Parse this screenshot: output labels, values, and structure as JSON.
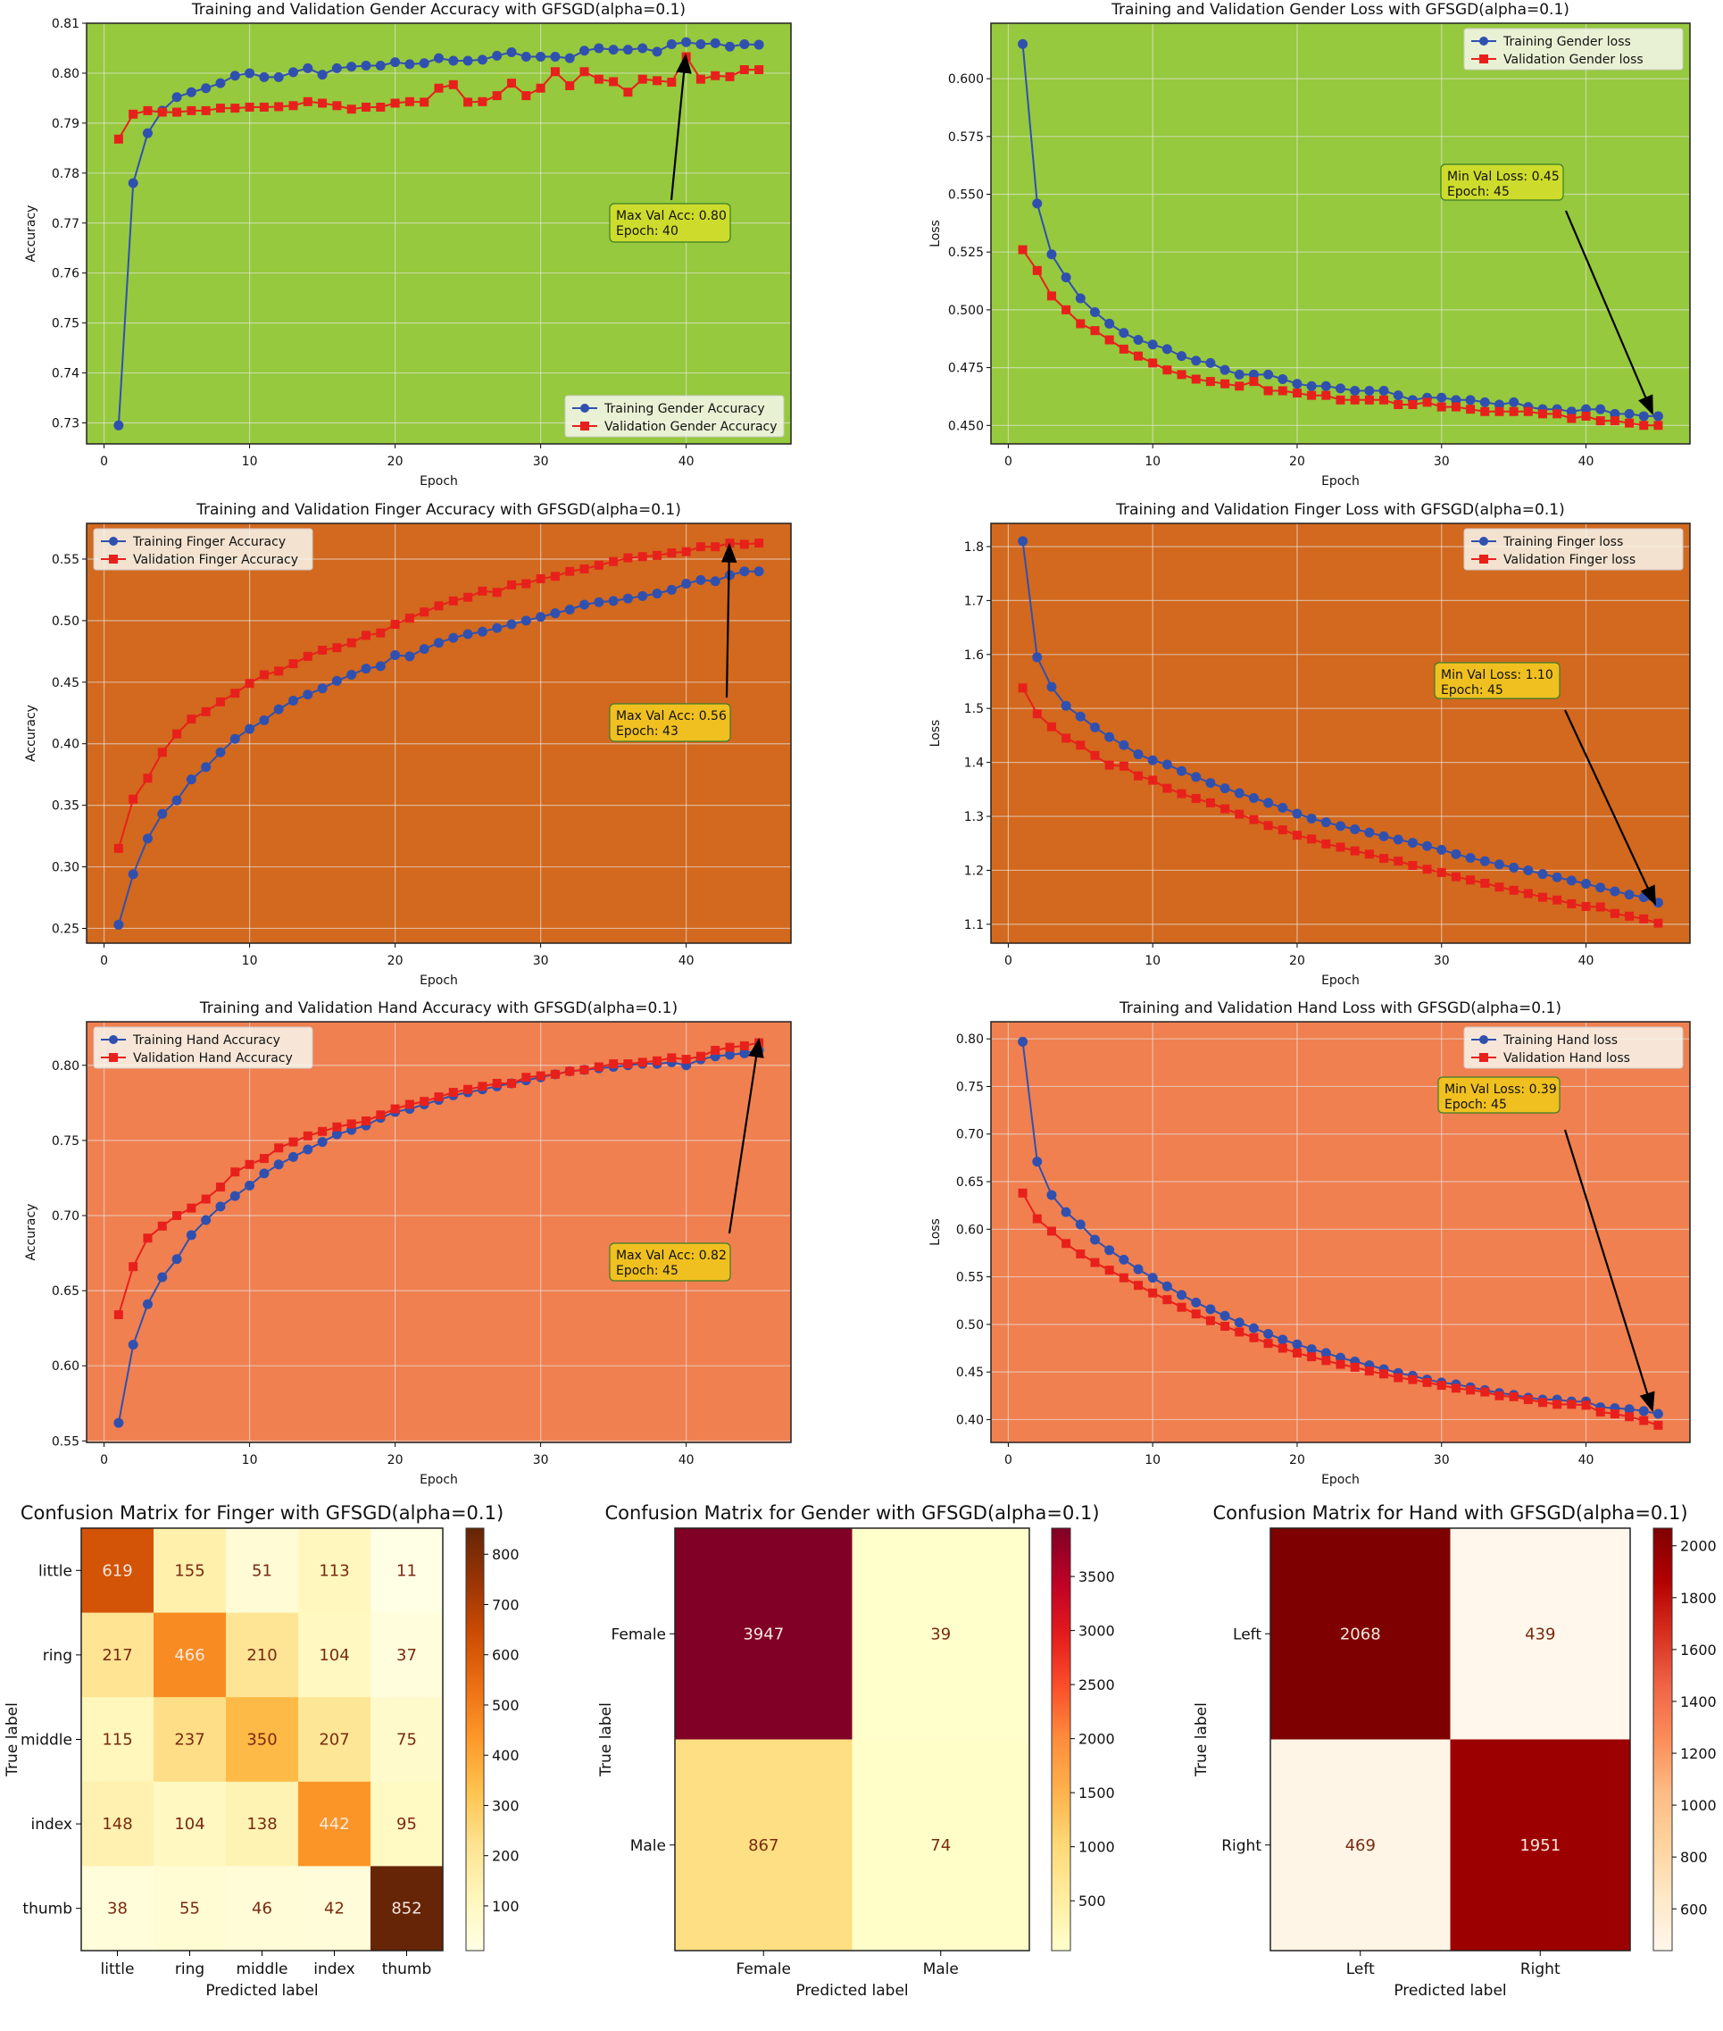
{
  "colors": {
    "train": "#3050b0",
    "val": "#e8201c",
    "gender_bg": "#96c93d",
    "finger_bg": "#d2691e",
    "hand_bg": "#f08050",
    "gender_ann": "#cddc2c",
    "other_ann": "#f0c020"
  },
  "chart_data": [
    {
      "type": "line",
      "id": "gender-acc",
      "title": "Training and Validation Gender Accuracy with GFSGD(alpha=0.1)",
      "xlabel": "Epoch",
      "ylabel": "Accuracy",
      "xlim": [
        -1.2,
        47.2
      ],
      "ylim": [
        0.7258,
        0.81
      ],
      "xticks": [
        "0",
        "10",
        "20",
        "30",
        "40"
      ],
      "yticks": [
        "0.73",
        "0.74",
        "0.75",
        "0.76",
        "0.77",
        "0.78",
        "0.79",
        "0.80",
        "0.81"
      ],
      "legend": "lower-right",
      "bg": "gender_bg",
      "annbg": "gender_ann",
      "annotation": [
        "Max Val Acc: 0.80",
        "Epoch: 40"
      ],
      "series": [
        {
          "name": "Training Gender Accuracy",
          "marker": "circle",
          "values": [
            0.7295,
            0.778,
            0.788,
            0.7925,
            0.7952,
            0.7962,
            0.797,
            0.798,
            0.7995,
            0.8,
            0.7992,
            0.7992,
            0.8002,
            0.801,
            0.7997,
            0.801,
            0.8013,
            0.8015,
            0.8015,
            0.8022,
            0.8018,
            0.802,
            0.803,
            0.8025,
            0.8025,
            0.8027,
            0.8035,
            0.8042,
            0.8033,
            0.8033,
            0.8033,
            0.803,
            0.8045,
            0.805,
            0.8047,
            0.8047,
            0.805,
            0.8043,
            0.8058,
            0.8062,
            0.8058,
            0.806,
            0.8053,
            0.8058,
            0.8057
          ]
        },
        {
          "name": "Validation Gender Accuracy",
          "marker": "square",
          "values": [
            0.7868,
            0.7918,
            0.7925,
            0.7922,
            0.7922,
            0.7925,
            0.7925,
            0.793,
            0.793,
            0.7932,
            0.7932,
            0.7933,
            0.7935,
            0.7943,
            0.794,
            0.7935,
            0.7928,
            0.7932,
            0.7932,
            0.794,
            0.7943,
            0.7942,
            0.797,
            0.7977,
            0.7942,
            0.7943,
            0.7955,
            0.798,
            0.7955,
            0.797,
            0.8003,
            0.7975,
            0.8003,
            0.7988,
            0.7983,
            0.7962,
            0.7988,
            0.7985,
            0.7982,
            0.8033,
            0.7988,
            0.7995,
            0.7993,
            0.8007,
            0.8007
          ]
        }
      ]
    },
    {
      "type": "line",
      "id": "gender-loss",
      "title": "Training and Validation Gender Loss with GFSGD(alpha=0.1)",
      "xlabel": "Epoch",
      "ylabel": "Loss",
      "xlim": [
        -1.2,
        47.2
      ],
      "ylim": [
        0.442,
        0.624
      ],
      "xticks": [
        "0",
        "10",
        "20",
        "30",
        "40"
      ],
      "yticks": [
        "0.450",
        "0.475",
        "0.500",
        "0.525",
        "0.550",
        "0.575",
        "0.600"
      ],
      "legend": "upper-right",
      "bg": "gender_bg",
      "annbg": "gender_ann",
      "annotation": [
        "Min Val Loss: 0.45",
        "Epoch: 45"
      ],
      "series": [
        {
          "name": "Training Gender loss",
          "marker": "circle",
          "values": [
            0.615,
            0.546,
            0.524,
            0.514,
            0.505,
            0.499,
            0.494,
            0.49,
            0.487,
            0.485,
            0.483,
            0.48,
            0.478,
            0.477,
            0.474,
            0.472,
            0.472,
            0.472,
            0.47,
            0.468,
            0.467,
            0.467,
            0.466,
            0.465,
            0.465,
            0.465,
            0.463,
            0.461,
            0.462,
            0.462,
            0.461,
            0.461,
            0.46,
            0.459,
            0.46,
            0.458,
            0.457,
            0.457,
            0.456,
            0.457,
            0.457,
            0.455,
            0.455,
            0.454,
            0.454
          ]
        },
        {
          "name": "Validation Gender loss",
          "marker": "square",
          "values": [
            0.526,
            0.517,
            0.506,
            0.5,
            0.494,
            0.491,
            0.487,
            0.483,
            0.48,
            0.477,
            0.474,
            0.472,
            0.47,
            0.469,
            0.468,
            0.467,
            0.469,
            0.465,
            0.465,
            0.464,
            0.463,
            0.463,
            0.461,
            0.461,
            0.461,
            0.461,
            0.459,
            0.459,
            0.46,
            0.458,
            0.458,
            0.457,
            0.456,
            0.456,
            0.456,
            0.456,
            0.455,
            0.455,
            0.453,
            0.454,
            0.452,
            0.452,
            0.451,
            0.45,
            0.45
          ]
        }
      ]
    },
    {
      "type": "line",
      "id": "finger-acc",
      "title": "Training and Validation Finger Accuracy with GFSGD(alpha=0.1)",
      "xlabel": "Epoch",
      "ylabel": "Accuracy",
      "xlim": [
        -1.2,
        47.2
      ],
      "ylim": [
        0.238,
        0.579
      ],
      "xticks": [
        "0",
        "10",
        "20",
        "30",
        "40"
      ],
      "yticks": [
        "0.25",
        "0.30",
        "0.35",
        "0.40",
        "0.45",
        "0.50",
        "0.55"
      ],
      "legend": "upper-left",
      "bg": "finger_bg",
      "annbg": "other_ann",
      "annotation": [
        "Max Val Acc: 0.56",
        "Epoch: 43"
      ],
      "series": [
        {
          "name": "Training Finger Accuracy",
          "marker": "circle",
          "values": [
            0.253,
            0.294,
            0.323,
            0.343,
            0.354,
            0.371,
            0.381,
            0.393,
            0.404,
            0.412,
            0.419,
            0.428,
            0.435,
            0.44,
            0.445,
            0.451,
            0.456,
            0.461,
            0.463,
            0.472,
            0.471,
            0.477,
            0.482,
            0.486,
            0.489,
            0.491,
            0.494,
            0.497,
            0.5,
            0.503,
            0.506,
            0.509,
            0.513,
            0.515,
            0.516,
            0.518,
            0.52,
            0.522,
            0.525,
            0.53,
            0.533,
            0.532,
            0.537,
            0.54,
            0.54
          ]
        },
        {
          "name": "Validation Finger Accuracy",
          "marker": "square",
          "values": [
            0.315,
            0.355,
            0.372,
            0.393,
            0.408,
            0.42,
            0.426,
            0.434,
            0.441,
            0.449,
            0.456,
            0.459,
            0.465,
            0.471,
            0.476,
            0.478,
            0.482,
            0.488,
            0.49,
            0.497,
            0.502,
            0.507,
            0.512,
            0.516,
            0.519,
            0.524,
            0.523,
            0.529,
            0.53,
            0.534,
            0.536,
            0.54,
            0.542,
            0.545,
            0.548,
            0.551,
            0.552,
            0.553,
            0.555,
            0.556,
            0.56,
            0.56,
            0.563,
            0.562,
            0.563
          ]
        }
      ]
    },
    {
      "type": "line",
      "id": "finger-loss",
      "title": "Training and Validation Finger Loss with GFSGD(alpha=0.1)",
      "xlabel": "Epoch",
      "ylabel": "Loss",
      "xlim": [
        -1.2,
        47.2
      ],
      "ylim": [
        1.065,
        1.843
      ],
      "xticks": [
        "0",
        "10",
        "20",
        "30",
        "40"
      ],
      "yticks": [
        "1.1",
        "1.2",
        "1.3",
        "1.4",
        "1.5",
        "1.6",
        "1.7",
        "1.8"
      ],
      "legend": "upper-right",
      "bg": "finger_bg",
      "annbg": "other_ann",
      "annotation": [
        "Min Val Loss: 1.10",
        "Epoch: 45"
      ],
      "series": [
        {
          "name": "Training Finger loss",
          "marker": "circle",
          "values": [
            1.81,
            1.595,
            1.54,
            1.505,
            1.485,
            1.465,
            1.447,
            1.432,
            1.415,
            1.404,
            1.396,
            1.384,
            1.373,
            1.362,
            1.352,
            1.343,
            1.334,
            1.325,
            1.316,
            1.305,
            1.296,
            1.289,
            1.282,
            1.276,
            1.27,
            1.263,
            1.257,
            1.251,
            1.245,
            1.238,
            1.23,
            1.223,
            1.217,
            1.211,
            1.205,
            1.2,
            1.193,
            1.187,
            1.181,
            1.175,
            1.168,
            1.161,
            1.155,
            1.15,
            1.14
          ]
        },
        {
          "name": "Validation Finger loss",
          "marker": "square",
          "values": [
            1.538,
            1.49,
            1.466,
            1.445,
            1.432,
            1.413,
            1.395,
            1.393,
            1.375,
            1.367,
            1.352,
            1.342,
            1.333,
            1.325,
            1.314,
            1.304,
            1.294,
            1.283,
            1.275,
            1.265,
            1.258,
            1.249,
            1.243,
            1.236,
            1.23,
            1.222,
            1.217,
            1.209,
            1.202,
            1.196,
            1.188,
            1.182,
            1.176,
            1.169,
            1.163,
            1.157,
            1.15,
            1.145,
            1.138,
            1.133,
            1.132,
            1.12,
            1.115,
            1.11,
            1.102
          ]
        }
      ]
    },
    {
      "type": "line",
      "id": "hand-acc",
      "title": "Training and Validation Hand Accuracy with GFSGD(alpha=0.1)",
      "xlabel": "Epoch",
      "ylabel": "Accuracy",
      "xlim": [
        -1.2,
        47.2
      ],
      "ylim": [
        0.549,
        0.829
      ],
      "xticks": [
        "0",
        "10",
        "20",
        "30",
        "40"
      ],
      "yticks": [
        "0.55",
        "0.60",
        "0.65",
        "0.70",
        "0.75",
        "0.80"
      ],
      "legend": "upper-left",
      "bg": "hand_bg",
      "annbg": "other_ann",
      "annotation": [
        "Max Val Acc: 0.82",
        "Epoch: 45"
      ],
      "series": [
        {
          "name": "Training Hand Accuracy",
          "marker": "circle",
          "values": [
            0.562,
            0.614,
            0.641,
            0.659,
            0.671,
            0.687,
            0.697,
            0.706,
            0.713,
            0.72,
            0.728,
            0.734,
            0.739,
            0.744,
            0.749,
            0.754,
            0.757,
            0.76,
            0.765,
            0.769,
            0.771,
            0.774,
            0.777,
            0.78,
            0.782,
            0.784,
            0.786,
            0.788,
            0.79,
            0.792,
            0.794,
            0.796,
            0.797,
            0.798,
            0.799,
            0.8,
            0.801,
            0.801,
            0.802,
            0.8,
            0.804,
            0.806,
            0.807,
            0.808,
            0.81
          ]
        },
        {
          "name": "Validation Hand Accuracy",
          "marker": "square",
          "values": [
            0.634,
            0.666,
            0.685,
            0.693,
            0.7,
            0.705,
            0.711,
            0.719,
            0.729,
            0.734,
            0.738,
            0.745,
            0.749,
            0.753,
            0.756,
            0.759,
            0.761,
            0.763,
            0.767,
            0.771,
            0.774,
            0.776,
            0.779,
            0.782,
            0.784,
            0.786,
            0.788,
            0.788,
            0.792,
            0.793,
            0.794,
            0.796,
            0.797,
            0.799,
            0.801,
            0.801,
            0.802,
            0.803,
            0.805,
            0.804,
            0.806,
            0.81,
            0.812,
            0.813,
            0.815
          ]
        }
      ]
    },
    {
      "type": "line",
      "id": "hand-loss",
      "title": "Training and Validation Hand Loss with GFSGD(alpha=0.1)",
      "xlabel": "Epoch",
      "ylabel": "Loss",
      "xlim": [
        -1.2,
        47.2
      ],
      "ylim": [
        0.376,
        0.818
      ],
      "xticks": [
        "0",
        "10",
        "20",
        "30",
        "40"
      ],
      "yticks": [
        "0.40",
        "0.45",
        "0.50",
        "0.55",
        "0.60",
        "0.65",
        "0.70",
        "0.75",
        "0.80"
      ],
      "legend": "upper-right",
      "bg": "hand_bg",
      "annbg": "other_ann",
      "annotation": [
        "Min Val Loss: 0.39",
        "Epoch: 45"
      ],
      "series": [
        {
          "name": "Training Hand loss",
          "marker": "circle",
          "values": [
            0.797,
            0.671,
            0.636,
            0.618,
            0.605,
            0.589,
            0.578,
            0.568,
            0.558,
            0.549,
            0.54,
            0.531,
            0.523,
            0.516,
            0.509,
            0.502,
            0.496,
            0.49,
            0.484,
            0.479,
            0.474,
            0.47,
            0.465,
            0.461,
            0.457,
            0.453,
            0.449,
            0.446,
            0.442,
            0.439,
            0.437,
            0.434,
            0.431,
            0.428,
            0.426,
            0.423,
            0.421,
            0.421,
            0.419,
            0.419,
            0.413,
            0.412,
            0.411,
            0.409,
            0.406
          ]
        },
        {
          "name": "Validation Hand loss",
          "marker": "square",
          "values": [
            0.638,
            0.611,
            0.598,
            0.585,
            0.574,
            0.565,
            0.557,
            0.549,
            0.541,
            0.533,
            0.526,
            0.518,
            0.511,
            0.504,
            0.498,
            0.492,
            0.486,
            0.48,
            0.475,
            0.47,
            0.466,
            0.462,
            0.458,
            0.455,
            0.451,
            0.448,
            0.444,
            0.442,
            0.439,
            0.436,
            0.433,
            0.431,
            0.429,
            0.425,
            0.424,
            0.421,
            0.418,
            0.416,
            0.416,
            0.415,
            0.408,
            0.406,
            0.403,
            0.399,
            0.394
          ]
        }
      ]
    },
    {
      "type": "heatmap",
      "id": "cm-finger",
      "title": "Confusion Matrix for Finger with GFSGD(alpha=0.1)",
      "xlabel": "Predicted label",
      "ylabel": "True label",
      "labels": [
        "little",
        "ring",
        "middle",
        "index",
        "thumb"
      ],
      "matrix": [
        [
          619,
          155,
          51,
          113,
          11
        ],
        [
          217,
          466,
          210,
          104,
          37
        ],
        [
          115,
          237,
          350,
          207,
          75
        ],
        [
          148,
          104,
          138,
          442,
          95
        ],
        [
          38,
          55,
          46,
          42,
          852
        ]
      ],
      "colorbar_ticks": [
        "100",
        "200",
        "300",
        "400",
        "500",
        "600",
        "700",
        "800"
      ],
      "colormap": "YlOrBr"
    },
    {
      "type": "heatmap",
      "id": "cm-gender",
      "title": "Confusion Matrix for Gender with GFSGD(alpha=0.1)",
      "xlabel": "Predicted label",
      "ylabel": "True label",
      "labels": [
        "Female",
        "Male"
      ],
      "matrix": [
        [
          3947,
          39
        ],
        [
          867,
          74
        ]
      ],
      "colorbar_ticks": [
        "500",
        "1000",
        "1500",
        "2000",
        "2500",
        "3000",
        "3500"
      ],
      "colormap": "YlOrRd"
    },
    {
      "type": "heatmap",
      "id": "cm-hand",
      "title": "Confusion Matrix for Hand with GFSGD(alpha=0.1)",
      "xlabel": "Predicted label",
      "ylabel": "True label",
      "labels": [
        "Left",
        "Right"
      ],
      "matrix": [
        [
          2068,
          439
        ],
        [
          469,
          1951
        ]
      ],
      "colorbar_ticks": [
        "600",
        "800",
        "1000",
        "1200",
        "1400",
        "1600",
        "1800",
        "2000"
      ],
      "colormap": "OrRd"
    }
  ]
}
